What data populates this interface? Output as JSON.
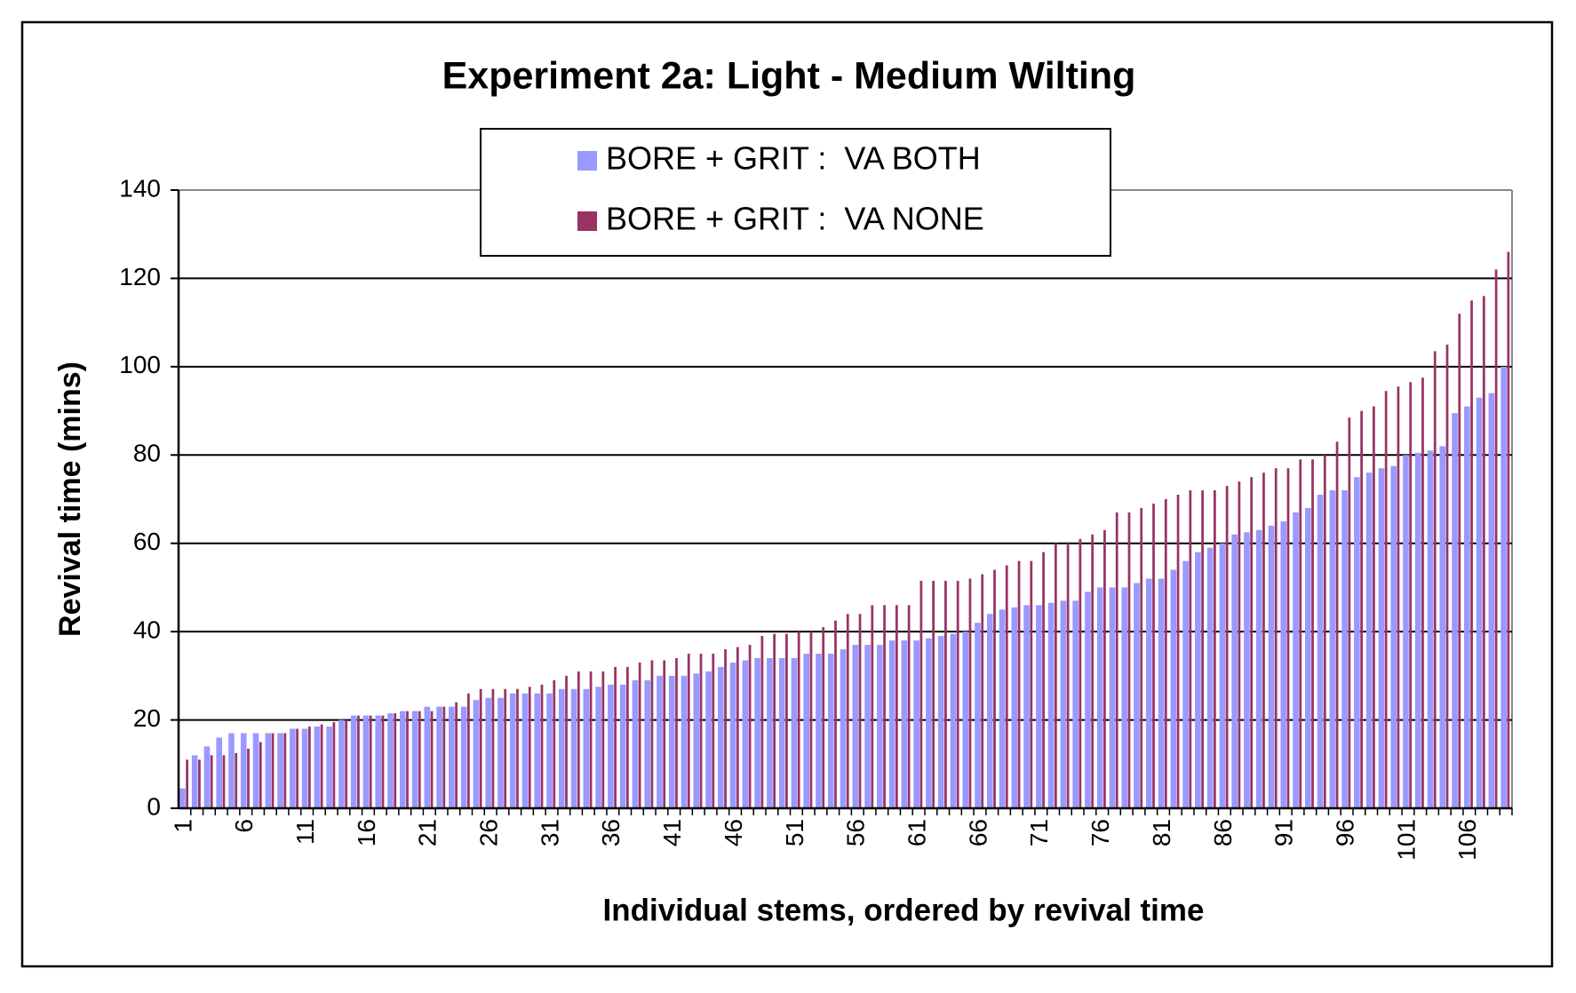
{
  "chart_data": {
    "type": "bar",
    "title": "Experiment 2a: Light - Medium Wilting",
    "x_label": "Individual stems, ordered by revival time",
    "y_label": "Revival time (mins)",
    "categories": [
      "1",
      null,
      null,
      null,
      null,
      "6",
      null,
      null,
      null,
      null,
      "11",
      null,
      null,
      null,
      null,
      "16",
      null,
      null,
      null,
      null,
      "21",
      null,
      null,
      null,
      null,
      "26",
      null,
      null,
      null,
      null,
      "31",
      null,
      null,
      null,
      null,
      "36",
      null,
      null,
      null,
      null,
      "41",
      null,
      null,
      null,
      null,
      "46",
      null,
      null,
      null,
      null,
      "51",
      null,
      null,
      null,
      null,
      "56",
      null,
      null,
      null,
      null,
      "61",
      null,
      null,
      null,
      null,
      "66",
      null,
      null,
      null,
      null,
      "71",
      null,
      null,
      null,
      null,
      "76",
      null,
      null,
      null,
      null,
      "81",
      null,
      null,
      null,
      null,
      "86",
      null,
      null,
      null,
      null,
      "91",
      null,
      null,
      null,
      null,
      "96",
      null,
      null,
      null,
      null,
      "101",
      null,
      null,
      null,
      null,
      "106",
      null,
      null,
      null
    ],
    "series": [
      {
        "name": "BORE + GRIT :  VA BOTH",
        "color": "#9999ff",
        "values": [
          4.5,
          12,
          14,
          16,
          17,
          17,
          17,
          17,
          17,
          18,
          18,
          18.5,
          18.5,
          20,
          21,
          21,
          21,
          21.5,
          22,
          22,
          23,
          23,
          23,
          23,
          24.5,
          25,
          25,
          26,
          26,
          26,
          26,
          27,
          27,
          27,
          27.5,
          28,
          28,
          29,
          29,
          30,
          30,
          30,
          30.5,
          31,
          32,
          33,
          33.5,
          34,
          34,
          34,
          34,
          35,
          35,
          35,
          36,
          37,
          37,
          37,
          38,
          38,
          38,
          38.5,
          39,
          39.5,
          40,
          42,
          44,
          45,
          45.5,
          46,
          46,
          46.5,
          47,
          47,
          49,
          50,
          50,
          50,
          51,
          52,
          52,
          54,
          56,
          58,
          59,
          60,
          62,
          62.5,
          63,
          64,
          65,
          67,
          68,
          71,
          72,
          72,
          75,
          76,
          77,
          77.5,
          80,
          80.5,
          81,
          82,
          89.5,
          91,
          93,
          94,
          100
        ]
      },
      {
        "name": "BORE + GRIT :  VA NONE",
        "color": "#993366",
        "values": [
          11,
          11,
          12,
          12,
          12.5,
          13.5,
          15,
          17,
          17,
          18,
          18.5,
          19,
          19.5,
          20,
          21,
          21,
          21,
          21.5,
          22,
          22,
          22,
          23,
          24,
          26,
          27,
          27,
          27,
          27,
          27.5,
          28,
          29,
          30,
          31,
          31,
          31,
          32,
          32,
          33,
          33.5,
          33.5,
          34,
          35,
          35,
          35,
          36,
          36.5,
          37,
          39,
          39.5,
          39.5,
          40,
          40,
          41,
          42.5,
          44,
          44,
          46,
          46,
          46,
          46,
          51.5,
          51.5,
          51.5,
          51.5,
          52,
          53,
          54,
          55,
          56,
          56,
          58,
          60,
          60,
          61,
          62,
          63,
          67,
          67,
          68,
          69,
          70,
          71,
          72,
          72,
          72,
          73,
          74,
          75,
          76,
          77,
          77,
          79,
          79,
          80,
          83,
          88.5,
          90,
          91,
          94.5,
          95.5,
          96.5,
          97.5,
          103.5,
          105,
          112,
          115,
          116,
          122,
          126
        ]
      }
    ],
    "ylim": [
      0,
      140
    ],
    "yticks": [
      0,
      20,
      40,
      60,
      80,
      100,
      120,
      140
    ],
    "grid": true,
    "legend": "top"
  }
}
